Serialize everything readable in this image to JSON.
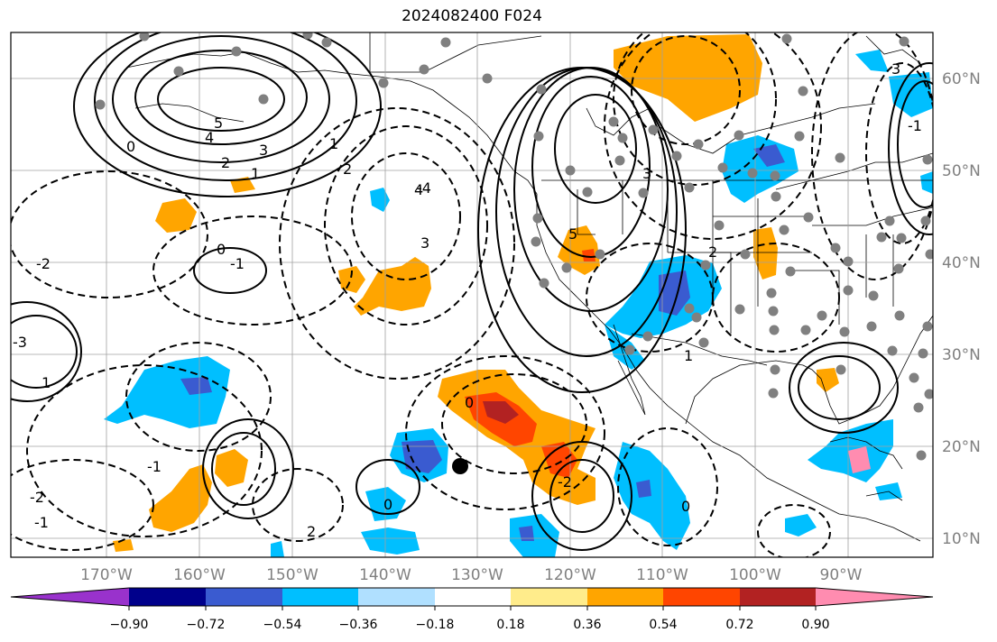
{
  "title": "2024082400 F024",
  "colors": {
    "neg_090": "#9932cc",
    "neg_072": "#00008b",
    "neg_054": "#3a5bd0",
    "neg_036": "#00bfff",
    "neg_018": "#b0e0ff",
    "zero": "#ffffff",
    "pos_018": "#ffec8b",
    "pos_036": "#ffa500",
    "pos_054": "#ff4500",
    "pos_072": "#b22222",
    "pos_090": "#ff8cb0",
    "station": "#808080",
    "contour": "#000000",
    "grid": "#a0a0a0"
  },
  "longitude_ticks": [
    "170°W",
    "160°W",
    "150°W",
    "140°W",
    "130°W",
    "120°W",
    "110°W",
    "100°W",
    "90°W"
  ],
  "latitude_ticks": [
    "60°N",
    "50°N",
    "40°N",
    "30°N",
    "20°N",
    "10°N"
  ],
  "colorbar": {
    "labels": [
      "−0.90",
      "−0.72",
      "−0.54",
      "−0.36",
      "−0.18",
      "0.18",
      "0.36",
      "0.54",
      "0.72",
      "0.90"
    ],
    "colors": [
      "#9932cc",
      "#00008b",
      "#3a5bd0",
      "#00bfff",
      "#b0e0ff",
      "#ffffff",
      "#ffec8b",
      "#ffa500",
      "#ff4500",
      "#b22222",
      "#ff8cb0"
    ]
  },
  "contour_labels": [
    "5",
    "4",
    "3",
    "2",
    "1",
    "0",
    "1",
    "2",
    "3",
    "4",
    "-2",
    "-1",
    "0",
    "5",
    "3",
    "2",
    "1",
    "0",
    "-1",
    "-2",
    "-3",
    "-4",
    "0",
    "1",
    "2",
    "-1",
    "0",
    "-1",
    "-2",
    "3"
  ],
  "storm_marker": {
    "lon": -130.5,
    "lat": 18.0
  }
}
